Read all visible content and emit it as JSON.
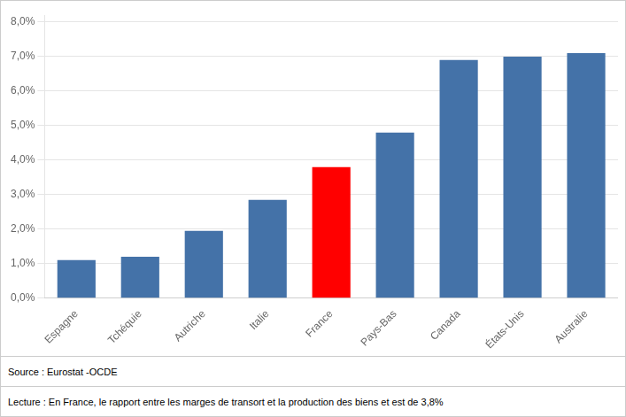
{
  "chart_data": {
    "type": "bar",
    "categories": [
      "Espagne",
      "Tchéquie",
      "Autriche",
      "Italie",
      "France",
      "Pays-Bas",
      "Canada",
      "États-Unis",
      "Australie"
    ],
    "values": [
      0.011,
      0.012,
      0.0195,
      0.0285,
      0.038,
      0.048,
      0.069,
      0.07,
      0.071
    ],
    "colors": [
      "#4472a8",
      "#4472a8",
      "#4472a8",
      "#4472a8",
      "#ff0000",
      "#4472a8",
      "#4472a8",
      "#4472a8",
      "#4472a8"
    ],
    "ylim": [
      0,
      0.082
    ],
    "yticks": [
      {
        "value": 0.0,
        "label": "0,0%"
      },
      {
        "value": 0.01,
        "label": "1,0%"
      },
      {
        "value": 0.02,
        "label": "2,0%"
      },
      {
        "value": 0.03,
        "label": "3,0%"
      },
      {
        "value": 0.04,
        "label": "4,0%"
      },
      {
        "value": 0.05,
        "label": "5,0%"
      },
      {
        "value": 0.06,
        "label": "6,0%"
      },
      {
        "value": 0.07,
        "label": "7,0%"
      },
      {
        "value": 0.08,
        "label": "8,0%"
      }
    ],
    "grid": true,
    "annotations": [
      "Source : Eurostat -OCDE",
      "Lecture : En France, le rapport entre les marges de transort  et la production des biens et est de 3,8%"
    ]
  }
}
